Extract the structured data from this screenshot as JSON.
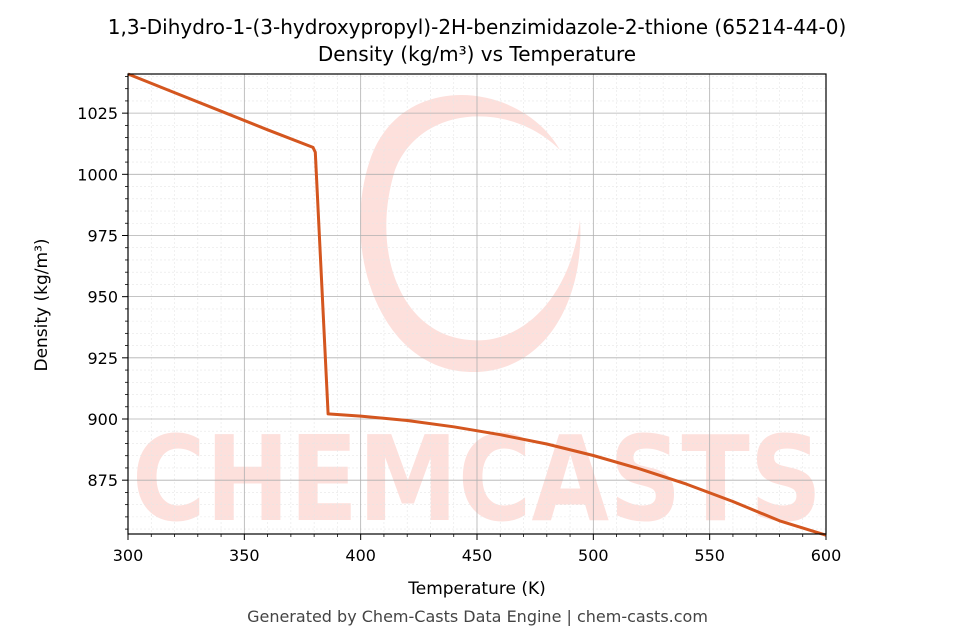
{
  "chart_data": {
    "type": "line",
    "title": "1,3-Dihydro-1-(3-hydroxypropyl)-2H-benzimidazole-2-thione (65214-44-0)",
    "subtitle": "Density (kg/m³) vs Temperature",
    "xlabel": "Temperature (K)",
    "ylabel": "Density (kg/m³)",
    "xlim": [
      300,
      600
    ],
    "ylim": [
      853,
      1041
    ],
    "x_ticks": [
      300,
      350,
      400,
      450,
      500,
      550,
      600
    ],
    "y_ticks": [
      875,
      900,
      925,
      950,
      975,
      1000,
      1025
    ],
    "grid": true,
    "series": [
      {
        "color": "#d4561f",
        "x": [
          300,
          320,
          340,
          360,
          379.5,
          380.5,
          386,
          400,
          420,
          440,
          460,
          480,
          500,
          520,
          540,
          560,
          580,
          600
        ],
        "y": [
          1041,
          1033.4,
          1025.8,
          1018.2,
          1011,
          1009,
          902.1,
          901.2,
          899.4,
          896.8,
          893.6,
          889.8,
          885.1,
          879.6,
          873.4,
          866.3,
          858.4,
          852.5
        ]
      }
    ],
    "watermark": "CHEMCASTS"
  },
  "footer": "Generated by Chem-Casts Data Engine | chem-casts.com"
}
